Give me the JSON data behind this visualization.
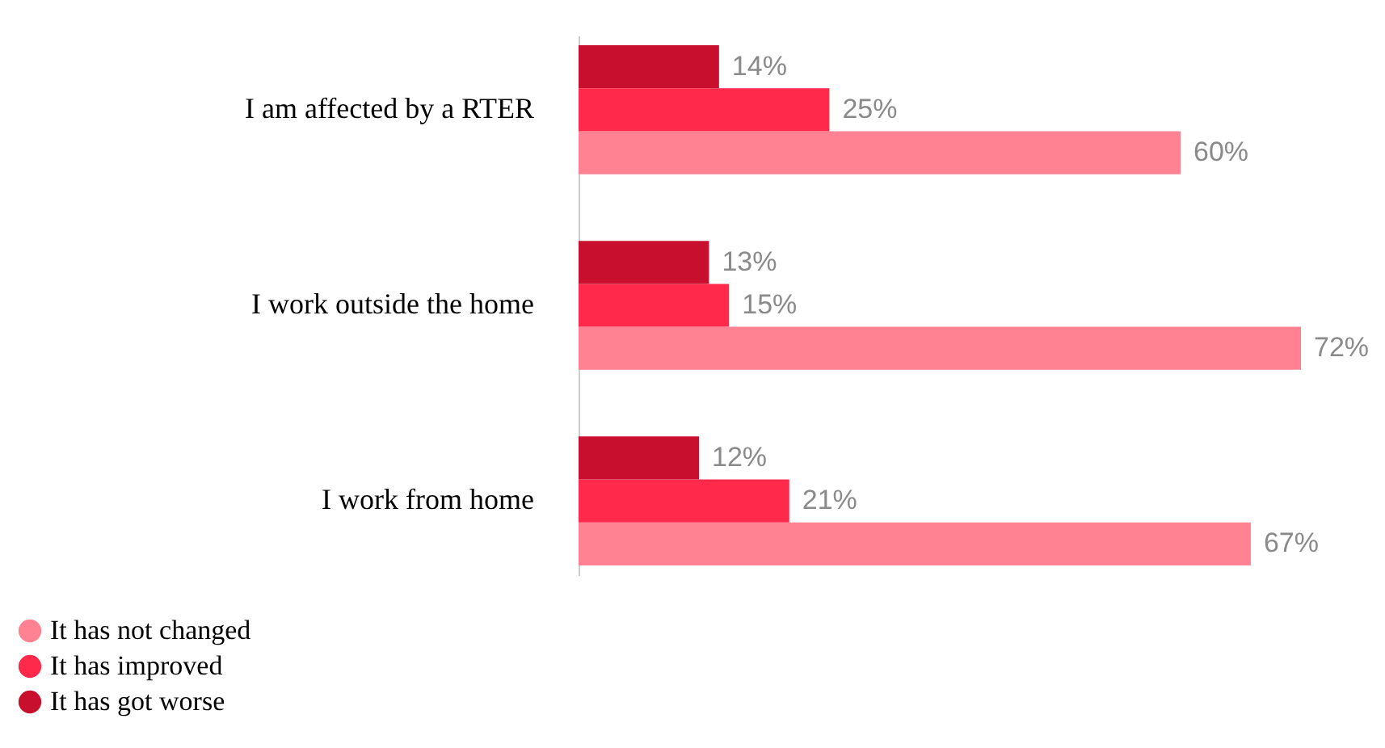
{
  "chart_data": {
    "type": "bar",
    "orientation": "horizontal",
    "categories": [
      "I am affected by a RTER",
      "I work outside the home",
      "I work from home"
    ],
    "series": [
      {
        "name": "It has not changed",
        "color": "#ff8293",
        "values": [
          60,
          72,
          67
        ],
        "value_labels": [
          "60%",
          "72%",
          "67%"
        ]
      },
      {
        "name": "It has improved",
        "color": "#ff2a4b",
        "values": [
          25,
          15,
          21
        ],
        "value_labels": [
          "25%",
          "15%",
          "21%"
        ]
      },
      {
        "name": "It has got worse",
        "color": "#c8102e",
        "values": [
          14,
          13,
          12
        ],
        "value_labels": [
          "14%",
          "13%",
          "12%"
        ]
      }
    ],
    "legend": "bottom left"
  }
}
